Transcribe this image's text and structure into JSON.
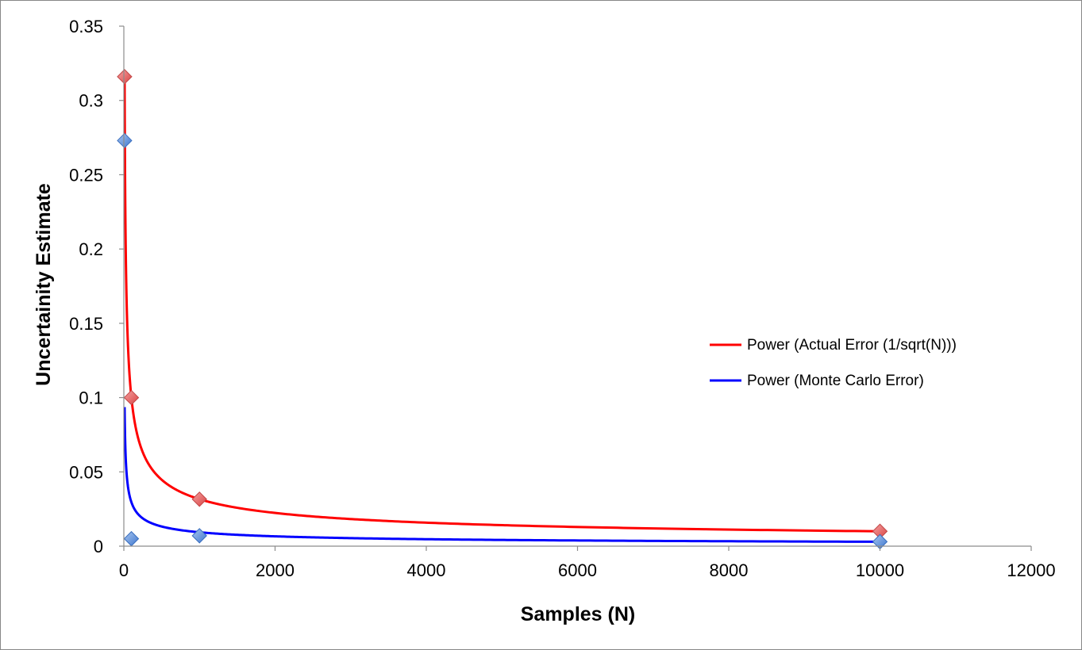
{
  "chart_data": {
    "type": "scatter",
    "xlabel": "Samples (N)",
    "ylabel": "Uncertainity Estimate",
    "xlim": [
      0,
      12000
    ],
    "ylim": [
      0,
      0.35
    ],
    "x_ticks": [
      0,
      2000,
      4000,
      6000,
      8000,
      10000,
      12000
    ],
    "y_ticks": [
      0,
      0.05,
      0.1,
      0.15,
      0.2,
      0.25,
      0.3,
      0.35
    ],
    "x_tick_labels": [
      "0",
      "2000",
      "4000",
      "6000",
      "8000",
      "10000",
      "12000"
    ],
    "y_tick_labels": [
      "0",
      "0.05",
      "0.1",
      "0.15",
      "0.2",
      "0.25",
      "0.3",
      "0.35"
    ],
    "grid": false,
    "legend_position": "right",
    "series": [
      {
        "name": "Actual Error (1/sqrt(N))",
        "marker": "diamond",
        "color": "#e06666",
        "x": [
          10,
          100,
          1000,
          10000
        ],
        "y": [
          0.316,
          0.1,
          0.0316,
          0.01
        ]
      },
      {
        "name": "Monte Carlo Error",
        "marker": "diamond",
        "color": "#5b8fd9",
        "x": [
          10,
          100,
          1000,
          10000
        ],
        "y": [
          0.273,
          0.005,
          0.007,
          0.003
        ]
      }
    ],
    "trendlines": [
      {
        "name": "Power (Actual Error (1/sqrt(N)))",
        "type": "power",
        "color": "#ff0000",
        "coefficient": 1.0,
        "exponent": -0.5
      },
      {
        "name": "Power (Monte Carlo Error)",
        "type": "power",
        "color": "#0000ff",
        "coefficient": 0.296,
        "exponent": -0.5
      }
    ]
  }
}
